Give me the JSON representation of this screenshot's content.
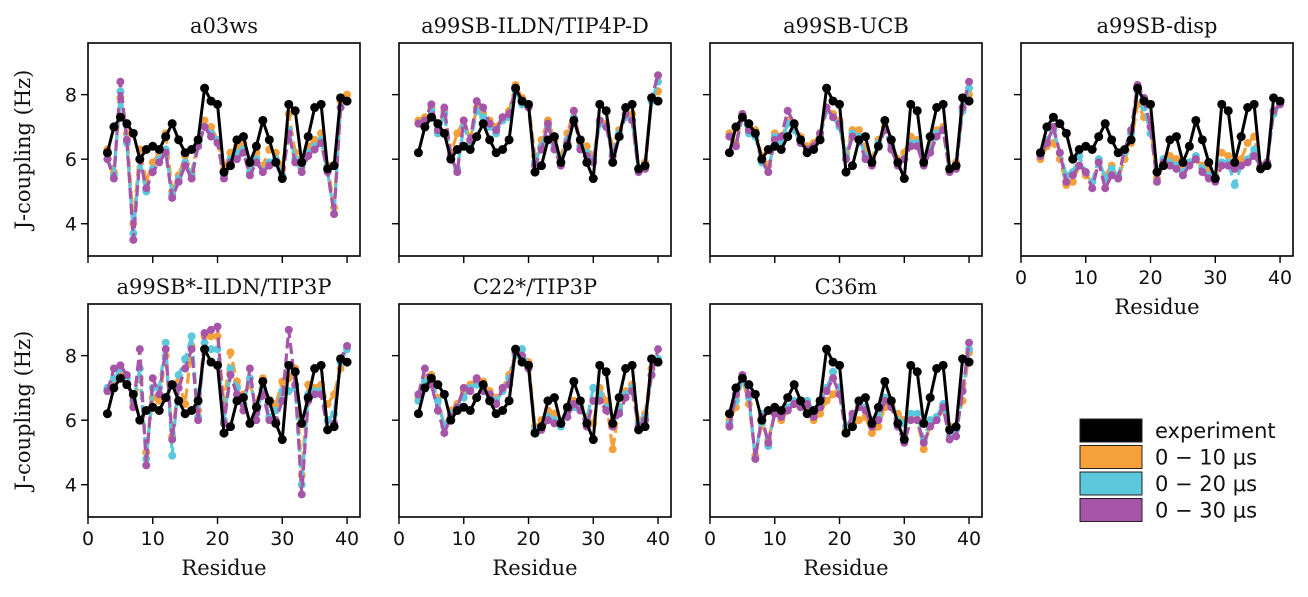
{
  "colors": {
    "experiment": "#000000",
    "0-10": "#F5A03A",
    "0-20": "#5BC8DC",
    "0-30": "#A655A8"
  },
  "chart_data": {
    "type": "line",
    "layout": "small-multiples 2x4",
    "xlabel": "Residue",
    "ylabel": "J-coupling (Hz)",
    "xlim": [
      0,
      42
    ],
    "ylim": [
      3,
      9.6
    ],
    "xticks": [
      0,
      10,
      20,
      30,
      40
    ],
    "yticks": [
      4,
      6,
      8
    ],
    "grid": false,
    "legend": {
      "placement": "lower-right",
      "entries": [
        {
          "key": "experiment",
          "label": "experiment"
        },
        {
          "key": "0-10",
          "label": "0 − 10 μs"
        },
        {
          "key": "0-20",
          "label": "0 − 20 μs"
        },
        {
          "key": "0-30",
          "label": "0 − 30 μs"
        }
      ]
    },
    "experiment": {
      "x": [
        3,
        4,
        5,
        6,
        7,
        8,
        9,
        10,
        11,
        12,
        13,
        14,
        15,
        16,
        17,
        18,
        19,
        20,
        21,
        22,
        23,
        24,
        25,
        26,
        27,
        28,
        29,
        30,
        31,
        32,
        33,
        34,
        35,
        36,
        37,
        38,
        39,
        40
      ],
      "y": [
        6.2,
        7.0,
        7.3,
        7.1,
        6.8,
        6.0,
        6.3,
        6.4,
        6.3,
        6.7,
        7.1,
        6.6,
        6.2,
        6.3,
        6.6,
        8.2,
        7.8,
        7.7,
        5.6,
        5.8,
        6.6,
        6.7,
        5.9,
        6.4,
        7.2,
        6.6,
        5.9,
        5.4,
        7.7,
        7.5,
        5.9,
        6.7,
        7.6,
        7.7,
        5.7,
        5.8,
        7.9,
        7.8
      ]
    },
    "panels": [
      {
        "title": "a03ws",
        "series": [
          {
            "key": "0-10",
            "y": [
              6.3,
              5.6,
              7.9,
              6.8,
              4.0,
              6.3,
              5.3,
              5.9,
              6.2,
              6.8,
              5.0,
              5.5,
              6.1,
              5.6,
              6.5,
              7.2,
              7.0,
              6.6,
              5.7,
              6.2,
              6.4,
              6.5,
              5.8,
              6.2,
              5.8,
              6.3,
              6.2,
              5.7,
              7.4,
              6.2,
              5.8,
              6.4,
              6.6,
              6.8,
              5.8,
              4.5,
              7.8,
              8.0
            ]
          },
          {
            "key": "0-20",
            "y": [
              6.0,
              5.5,
              8.1,
              6.5,
              3.7,
              6.0,
              5.0,
              5.7,
              6.0,
              6.3,
              4.9,
              5.4,
              5.9,
              5.5,
              6.5,
              7.0,
              6.8,
              6.6,
              5.5,
              6.0,
              6.2,
              6.3,
              5.6,
              6.0,
              5.6,
              5.9,
              6.0,
              5.5,
              6.9,
              6.0,
              5.6,
              6.2,
              6.4,
              6.6,
              5.6,
              4.3,
              7.6,
              7.8
            ]
          },
          {
            "key": "0-30",
            "y": [
              6.0,
              5.4,
              8.4,
              6.6,
              3.5,
              6.0,
              5.1,
              5.6,
              5.9,
              6.2,
              4.8,
              5.3,
              5.8,
              5.4,
              6.4,
              7.0,
              6.7,
              6.5,
              5.4,
              5.9,
              6.0,
              6.2,
              5.5,
              5.9,
              5.6,
              5.8,
              5.9,
              5.4,
              6.8,
              5.9,
              5.6,
              6.1,
              6.3,
              6.5,
              5.6,
              4.3,
              7.6,
              7.8
            ]
          }
        ]
      },
      {
        "title": "a99SB-ILDN/TIP4P-D",
        "series": [
          {
            "key": "0-10",
            "y": [
              7.2,
              7.3,
              7.6,
              6.9,
              7.5,
              6.2,
              6.8,
              7.2,
              6.6,
              7.6,
              7.4,
              7.2,
              7.0,
              7.3,
              7.5,
              8.3,
              7.9,
              7.7,
              6.1,
              6.6,
              7.2,
              6.6,
              6.1,
              6.8,
              7.5,
              6.5,
              6.4,
              6.1,
              7.2,
              7.1,
              6.4,
              6.9,
              7.4,
              7.4,
              5.7,
              5.9,
              7.9,
              8.1
            ]
          },
          {
            "key": "0-20",
            "y": [
              7.1,
              7.2,
              7.5,
              6.8,
              7.4,
              6.0,
              5.7,
              7.0,
              6.5,
              7.5,
              7.3,
              7.0,
              6.8,
              7.2,
              7.3,
              8.1,
              7.7,
              7.6,
              5.9,
              6.4,
              7.0,
              6.4,
              5.9,
              6.6,
              7.3,
              6.4,
              6.2,
              6.0,
              7.1,
              7.0,
              6.2,
              6.8,
              7.3,
              7.2,
              5.6,
              5.8,
              7.8,
              8.4
            ]
          },
          {
            "key": "0-30",
            "y": [
              7.1,
              7.2,
              7.7,
              6.9,
              7.6,
              6.1,
              5.6,
              7.2,
              6.6,
              7.8,
              7.6,
              7.1,
              6.9,
              7.3,
              7.4,
              8.2,
              7.8,
              7.6,
              5.8,
              6.3,
              7.1,
              6.3,
              5.8,
              6.5,
              7.5,
              6.3,
              6.1,
              5.9,
              7.2,
              7.0,
              6.1,
              6.7,
              7.4,
              7.2,
              5.6,
              5.7,
              7.9,
              8.6
            ]
          }
        ]
      },
      {
        "title": "a99SB-UCB",
        "series": [
          {
            "key": "0-10",
            "y": [
              6.8,
              6.5,
              7.4,
              7.0,
              6.9,
              6.1,
              5.8,
              6.8,
              6.6,
              7.2,
              7.0,
              6.7,
              6.4,
              6.5,
              6.8,
              7.6,
              7.4,
              7.2,
              6.2,
              6.9,
              6.9,
              6.3,
              6.0,
              6.6,
              7.0,
              6.5,
              6.0,
              6.2,
              6.7,
              6.6,
              6.0,
              6.4,
              6.9,
              7.0,
              5.7,
              5.9,
              7.6,
              8.0
            ]
          },
          {
            "key": "0-20",
            "y": [
              6.7,
              6.4,
              7.3,
              6.8,
              6.7,
              5.9,
              5.6,
              6.7,
              6.5,
              7.1,
              6.9,
              6.5,
              6.3,
              6.4,
              6.7,
              7.5,
              7.3,
              7.0,
              6.1,
              6.8,
              6.7,
              6.1,
              5.9,
              6.5,
              6.9,
              6.4,
              5.9,
              6.0,
              6.5,
              6.5,
              5.9,
              6.3,
              6.8,
              6.9,
              5.6,
              5.8,
              7.5,
              8.2
            ]
          },
          {
            "key": "0-30",
            "y": [
              6.7,
              6.4,
              7.4,
              6.9,
              6.8,
              6.0,
              5.6,
              6.6,
              6.7,
              7.5,
              7.1,
              6.5,
              6.3,
              6.4,
              6.8,
              7.6,
              7.3,
              7.1,
              6.0,
              6.7,
              6.6,
              6.0,
              5.8,
              6.4,
              6.9,
              6.3,
              5.8,
              6.0,
              6.4,
              6.4,
              5.8,
              6.2,
              6.7,
              6.9,
              5.6,
              5.7,
              7.6,
              8.4
            ]
          }
        ]
      },
      {
        "title": "a99SB-disp",
        "series": [
          {
            "key": "0-10",
            "y": [
              6.0,
              6.4,
              6.5,
              6.0,
              5.2,
              5.3,
              5.8,
              5.5,
              5.3,
              5.9,
              5.5,
              5.8,
              5.4,
              6.0,
              6.5,
              7.7,
              7.3,
              7.0,
              5.4,
              6.0,
              6.1,
              6.0,
              5.8,
              5.9,
              6.0,
              5.8,
              5.7,
              5.5,
              6.2,
              6.1,
              5.8,
              6.0,
              6.5,
              6.7,
              5.8,
              5.9,
              7.5,
              7.7
            ]
          },
          {
            "key": "0-20",
            "y": [
              6.1,
              6.6,
              6.9,
              6.2,
              5.5,
              5.6,
              6.1,
              5.6,
              5.3,
              6.0,
              5.4,
              5.7,
              5.5,
              6.2,
              6.8,
              8.1,
              7.6,
              6.8,
              5.6,
              6.0,
              5.9,
              5.8,
              5.6,
              5.9,
              6.1,
              5.7,
              5.5,
              5.4,
              5.9,
              5.9,
              5.2,
              5.8,
              6.0,
              6.3,
              5.7,
              5.9,
              7.4,
              7.7
            ]
          },
          {
            "key": "0-30",
            "y": [
              6.1,
              6.5,
              7.0,
              6.2,
              5.3,
              5.5,
              5.8,
              5.6,
              5.1,
              5.9,
              5.1,
              5.5,
              5.4,
              6.3,
              6.9,
              8.3,
              7.9,
              7.0,
              5.3,
              5.9,
              5.8,
              5.7,
              5.5,
              5.8,
              6.0,
              5.6,
              5.4,
              5.3,
              5.8,
              5.8,
              5.7,
              5.8,
              5.9,
              6.1,
              5.8,
              5.9,
              7.5,
              7.7
            ]
          }
        ]
      },
      {
        "title": "a99SB*-ILDN/TIP3P",
        "series": [
          {
            "key": "0-10",
            "y": [
              6.9,
              7.2,
              7.5,
              7.2,
              6.5,
              7.3,
              5.0,
              6.7,
              6.6,
              8.0,
              5.5,
              7.2,
              6.5,
              8.3,
              6.3,
              8.6,
              8.6,
              8.6,
              6.5,
              8.1,
              7.2,
              6.8,
              7.1,
              6.5,
              7.3,
              6.5,
              6.5,
              7.2,
              7.3,
              7.6,
              4.3,
              7.1,
              7.0,
              7.1,
              6.5,
              6.8,
              7.6,
              7.8
            ]
          },
          {
            "key": "0-20",
            "y": [
              7.0,
              7.3,
              7.6,
              7.3,
              6.6,
              7.6,
              4.8,
              7.0,
              7.0,
              8.4,
              4.9,
              7.4,
              7.9,
              8.6,
              6.1,
              8.4,
              8.2,
              8.2,
              6.0,
              7.6,
              7.0,
              6.5,
              7.3,
              6.2,
              7.0,
              6.1,
              6.3,
              6.9,
              6.9,
              7.0,
              4.0,
              6.8,
              6.9,
              6.9,
              6.0,
              6.2,
              7.8,
              8.2
            ]
          },
          {
            "key": "0-30",
            "y": [
              6.9,
              7.6,
              7.7,
              7.4,
              6.4,
              8.2,
              4.6,
              7.3,
              6.8,
              8.2,
              5.4,
              7.0,
              7.6,
              8.2,
              6.0,
              8.7,
              8.8,
              8.9,
              5.9,
              7.4,
              6.8,
              6.3,
              7.6,
              6.0,
              6.8,
              6.0,
              6.0,
              6.6,
              8.8,
              7.1,
              3.7,
              6.6,
              6.8,
              6.8,
              5.7,
              5.9,
              7.9,
              8.3
            ]
          }
        ]
      },
      {
        "title": "C22*/TIP3P",
        "series": [
          {
            "key": "0-10",
            "y": [
              6.7,
              7.3,
              7.4,
              6.7,
              5.8,
              6.3,
              6.5,
              6.9,
              7.1,
              7.3,
              7.2,
              6.9,
              6.7,
              7.0,
              7.4,
              8.1,
              7.9,
              7.8,
              5.8,
              6.0,
              6.3,
              6.2,
              5.9,
              6.4,
              6.6,
              6.5,
              6.1,
              5.9,
              7.0,
              6.6,
              5.1,
              6.4,
              6.9,
              7.1,
              6.0,
              6.2,
              7.6,
              7.9
            ]
          },
          {
            "key": "0-20",
            "y": [
              6.6,
              7.2,
              7.3,
              6.6,
              5.8,
              6.2,
              6.4,
              6.7,
              7.0,
              7.1,
              7.0,
              6.8,
              6.6,
              6.9,
              7.3,
              8.0,
              8.2,
              7.6,
              5.7,
              5.8,
              6.1,
              6.0,
              5.8,
              6.3,
              6.4,
              6.4,
              6.0,
              7.0,
              6.8,
              6.4,
              5.9,
              6.3,
              6.8,
              7.0,
              5.9,
              6.1,
              7.4,
              7.9
            ]
          },
          {
            "key": "0-30",
            "y": [
              6.8,
              7.6,
              7.1,
              6.3,
              5.6,
              6.1,
              6.4,
              7.0,
              6.9,
              7.3,
              6.9,
              6.8,
              6.5,
              7.0,
              7.1,
              8.1,
              8.0,
              7.6,
              5.6,
              5.7,
              6.0,
              5.9,
              5.9,
              6.1,
              6.5,
              6.3,
              5.8,
              6.6,
              6.6,
              6.3,
              5.8,
              6.2,
              6.7,
              6.9,
              5.8,
              6.0,
              7.4,
              8.2
            ]
          }
        ]
      },
      {
        "title": "C36m",
        "series": [
          {
            "key": "0-10",
            "y": [
              6.0,
              6.4,
              7.3,
              6.5,
              4.9,
              5.9,
              5.4,
              6.2,
              6.0,
              6.3,
              6.5,
              6.6,
              6.4,
              6.0,
              6.2,
              6.6,
              6.8,
              7.0,
              5.7,
              5.8,
              6.0,
              6.1,
              5.6,
              5.8,
              6.4,
              6.5,
              6.2,
              6.0,
              6.1,
              6.0,
              5.1,
              5.9,
              6.0,
              6.3,
              5.8,
              5.8,
              6.6,
              8.1
            ]
          },
          {
            "key": "0-20",
            "y": [
              5.9,
              6.6,
              7.3,
              6.7,
              4.8,
              6.2,
              5.2,
              6.3,
              6.2,
              6.4,
              6.6,
              6.5,
              6.6,
              6.3,
              6.5,
              7.0,
              7.5,
              7.0,
              5.8,
              6.1,
              6.5,
              6.4,
              6.0,
              6.1,
              6.7,
              6.6,
              6.0,
              5.9,
              6.2,
              6.2,
              5.4,
              6.0,
              6.1,
              6.5,
              5.5,
              5.7,
              6.9,
              8.2
            ]
          },
          {
            "key": "0-30",
            "y": [
              5.8,
              6.8,
              7.4,
              6.8,
              4.8,
              6.1,
              5.3,
              6.2,
              6.1,
              6.3,
              6.5,
              6.4,
              6.5,
              6.1,
              6.4,
              6.9,
              7.3,
              6.8,
              5.6,
              6.2,
              6.4,
              6.3,
              5.8,
              6.0,
              6.6,
              6.4,
              5.8,
              5.3,
              6.0,
              6.0,
              5.3,
              5.8,
              6.0,
              6.4,
              5.4,
              5.5,
              6.9,
              8.4
            ]
          }
        ]
      }
    ]
  }
}
